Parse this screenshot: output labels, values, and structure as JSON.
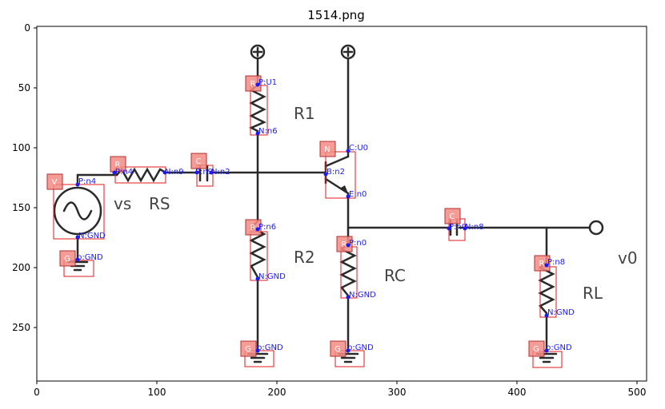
{
  "figure": {
    "title": "1514.png",
    "x_ticks": [
      "0",
      "100",
      "200",
      "300",
      "400",
      "500"
    ],
    "y_ticks": [
      "0",
      "50",
      "100",
      "150",
      "200",
      "250"
    ]
  },
  "circuit_labels": {
    "vs": "vs",
    "rs": "RS",
    "r1": "R1",
    "r2": "R2",
    "rc": "RC",
    "rl": "RL",
    "v0": "v0"
  },
  "detections": [
    {
      "id": "V",
      "tag": "V",
      "pins": [
        "P:n4",
        "N:GND"
      ]
    },
    {
      "id": "G1",
      "tag": "G",
      "pins": [
        "p:GND"
      ]
    },
    {
      "id": "RS",
      "tag": "R",
      "pins": [
        "P:n4",
        "N:n9"
      ]
    },
    {
      "id": "C1",
      "tag": "C",
      "pins": [
        "P:n9",
        "N:n2"
      ]
    },
    {
      "id": "R1",
      "tag": "R",
      "pins": [
        "P:U1",
        "N:n6"
      ]
    },
    {
      "id": "R2",
      "tag": "R",
      "pins": [
        "P:n6",
        "N:GND"
      ]
    },
    {
      "id": "G2",
      "tag": "G",
      "pins": [
        "p:GND"
      ]
    },
    {
      "id": "Q",
      "tag": "N",
      "pins": [
        "C:U0",
        "B:n2",
        "E:n0"
      ]
    },
    {
      "id": "RC",
      "tag": "R",
      "pins": [
        "P:n0",
        "N:GND"
      ]
    },
    {
      "id": "G3",
      "tag": "G",
      "pins": [
        "p:GND"
      ]
    },
    {
      "id": "C2",
      "tag": "C",
      "pins": [
        "P:n0",
        "N:n8"
      ]
    },
    {
      "id": "RL",
      "tag": "R",
      "pins": [
        "P:n8",
        "N:GND"
      ]
    },
    {
      "id": "G4",
      "tag": "G",
      "pins": [
        "p:GND"
      ]
    }
  ],
  "colors": {
    "box": "#e31a1c",
    "tag_fill": "#f28b82",
    "pin_text": "#1a1aff",
    "wire": "#2a2a2a"
  }
}
